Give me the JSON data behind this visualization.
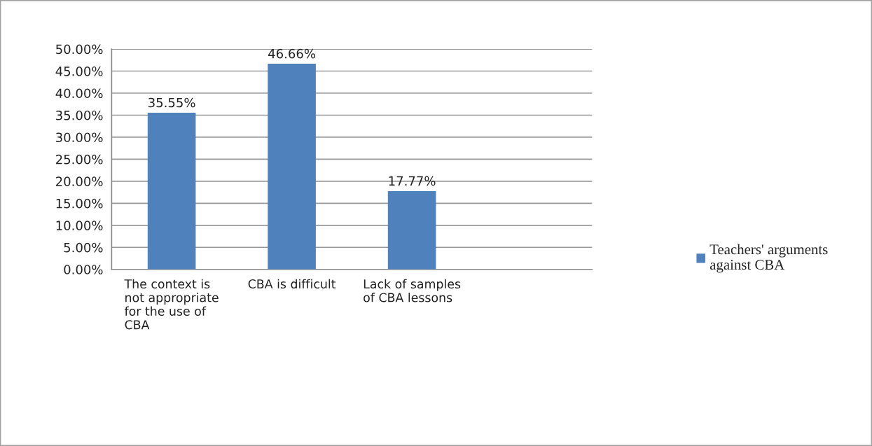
{
  "chart_data": {
    "type": "bar",
    "categories": [
      "The context is not appropriate for the use of CBA",
      "CBA is difficult",
      "Lack of samples of CBA lessons",
      null
    ],
    "series": [
      {
        "name": "Teachers' arguments against CBA",
        "color": "#4f81bd",
        "values": [
          35.55,
          46.66,
          17.77,
          null
        ],
        "value_labels": [
          "35.55%",
          "46.66%",
          "17.77%",
          null
        ]
      }
    ],
    "ylim": [
      0,
      50
    ],
    "yticks": [
      {
        "value": 0,
        "label": "0.00%"
      },
      {
        "value": 5,
        "label": "5.00%"
      },
      {
        "value": 10,
        "label": "10.00%"
      },
      {
        "value": 15,
        "label": "15.00%"
      },
      {
        "value": 20,
        "label": "20.00%"
      },
      {
        "value": 25,
        "label": "25.00%"
      },
      {
        "value": 30,
        "label": "30.00%"
      },
      {
        "value": 35,
        "label": "35.00%"
      },
      {
        "value": 40,
        "label": "40.00%"
      },
      {
        "value": 45,
        "label": "45.00%"
      },
      {
        "value": 50,
        "label": "50.00%"
      }
    ],
    "grid": "y",
    "legend": "right"
  }
}
